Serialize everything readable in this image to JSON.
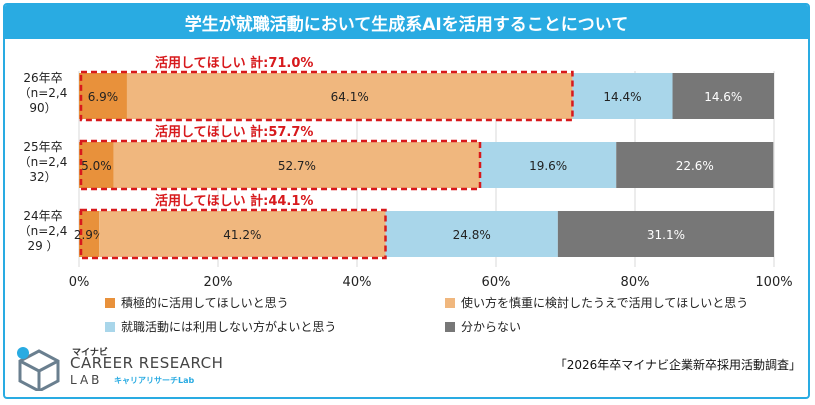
{
  "chart_data": {
    "type": "stacked-bar-horizontal",
    "title": "学生が就職活動において生成系AIを活用することについて",
    "categories": [
      "26年卒\n（n=2,4\n90）",
      "25年卒\n（n=2,4\n32）",
      "24年卒\n（n=2,4\n29 ）"
    ],
    "series": [
      {
        "name": "積極的に活用してほしいと思う",
        "color": "#e8913b",
        "values": [
          6.9,
          5.0,
          2.9
        ]
      },
      {
        "name": "使い方を慎重に検討したうえで活用してほしいと思う",
        "color": "#f0b77e",
        "values": [
          64.1,
          52.7,
          41.2
        ]
      },
      {
        "name": "就職活動には利用しない方がよいと思う",
        "color": "#a9d6ea",
        "values": [
          14.4,
          19.6,
          24.8
        ]
      },
      {
        "name": "分からない",
        "color": "#777777",
        "values": [
          14.6,
          22.6,
          31.1
        ]
      }
    ],
    "value_labels": [
      [
        "6.9%",
        "64.1%",
        "14.4%",
        "14.6%"
      ],
      [
        "5.0%",
        "52.7%",
        "19.6%",
        "22.6%"
      ],
      [
        "2.9%",
        "41.2%",
        "24.8%",
        "31.1%"
      ]
    ],
    "annotations": [
      "活用してほしい 計:71.0%",
      "活用してほしい 計:57.7%",
      "活用してほしい 計:44.1%"
    ],
    "annotation_totals": [
      71.0,
      57.7,
      44.1
    ],
    "annotation_color": "#d7191c",
    "xlim": [
      0,
      100
    ],
    "xticks": [
      "0%",
      "20%",
      "40%",
      "60%",
      "80%",
      "100%"
    ],
    "grid": true,
    "legend": "bottom"
  },
  "header": {
    "title": "学生が就職活動において生成系AIを活用することについて",
    "color": "#29abe2"
  },
  "logo": {
    "company": "マイナビ",
    "line1": "CAREER RESEARCH",
    "line2": "LAB",
    "sub": "キャリアリサーチLab"
  },
  "source": "「2026年卒マイナビ企業新卒採用活動調査」"
}
